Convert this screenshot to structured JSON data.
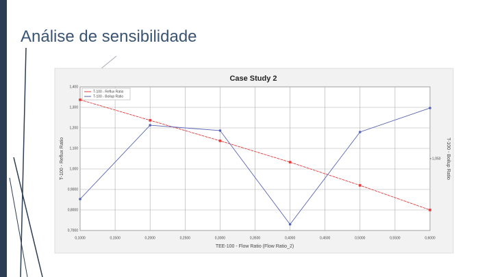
{
  "slide_title": "Análise de sensibilidade",
  "chart_data": {
    "type": "line",
    "title": "Case Study 2",
    "x_label": "TEE-100 - Flow Ratio (Flow Ratio_2)",
    "y_label": "T-100 - Reflux Ratio",
    "y2_label": "T-100 - Boilup Ratio",
    "x": [
      0.1,
      0.2,
      0.3,
      0.4,
      0.5,
      0.6
    ],
    "xlim": [
      0.1,
      0.6
    ],
    "xticks": [
      {
        "value": 0.1,
        "label": "0,1000"
      },
      {
        "value": 0.15,
        "label": "0,1500"
      },
      {
        "value": 0.2,
        "label": "0,2000"
      },
      {
        "value": 0.25,
        "label": "0,2500"
      },
      {
        "value": 0.3,
        "label": "0,3000"
      },
      {
        "value": 0.35,
        "label": "0,3500"
      },
      {
        "value": 0.4,
        "label": "0,4000"
      },
      {
        "value": 0.45,
        "label": "0,4500"
      },
      {
        "value": 0.5,
        "label": "0,5000"
      },
      {
        "value": 0.55,
        "label": "0,5500"
      },
      {
        "value": 0.6,
        "label": "0,6000"
      }
    ],
    "ylim": [
      0.7,
      1.4
    ],
    "yticks": [
      {
        "value": 1.4,
        "label": "1,400"
      },
      {
        "value": 1.3,
        "label": "1,300"
      },
      {
        "value": 1.2,
        "label": "1,200"
      },
      {
        "value": 1.1,
        "label": "1,100"
      },
      {
        "value": 1.0,
        "label": "1,000"
      },
      {
        "value": 0.9,
        "label": "0,9000"
      },
      {
        "value": 0.8,
        "label": "0,8000"
      },
      {
        "value": 0.7,
        "label": "0,7000"
      }
    ],
    "y2lim": [
      0.7,
      1.4
    ],
    "y2ticks": [
      {
        "value": 1.05,
        "label": "1,050"
      }
    ],
    "grid": true,
    "legend": "top-left",
    "series": [
      {
        "name": "T-100 - Reflux Ratio",
        "color": "#e03a3a",
        "values": [
          1.337,
          1.237,
          1.137,
          1.033,
          0.92,
          0.8
        ]
      },
      {
        "name": "T-100 - Boilup Ratio",
        "color": "#5563b3",
        "axis": "y2",
        "values": [
          0.853,
          1.213,
          1.187,
          0.73,
          1.18,
          1.297
        ]
      }
    ]
  }
}
